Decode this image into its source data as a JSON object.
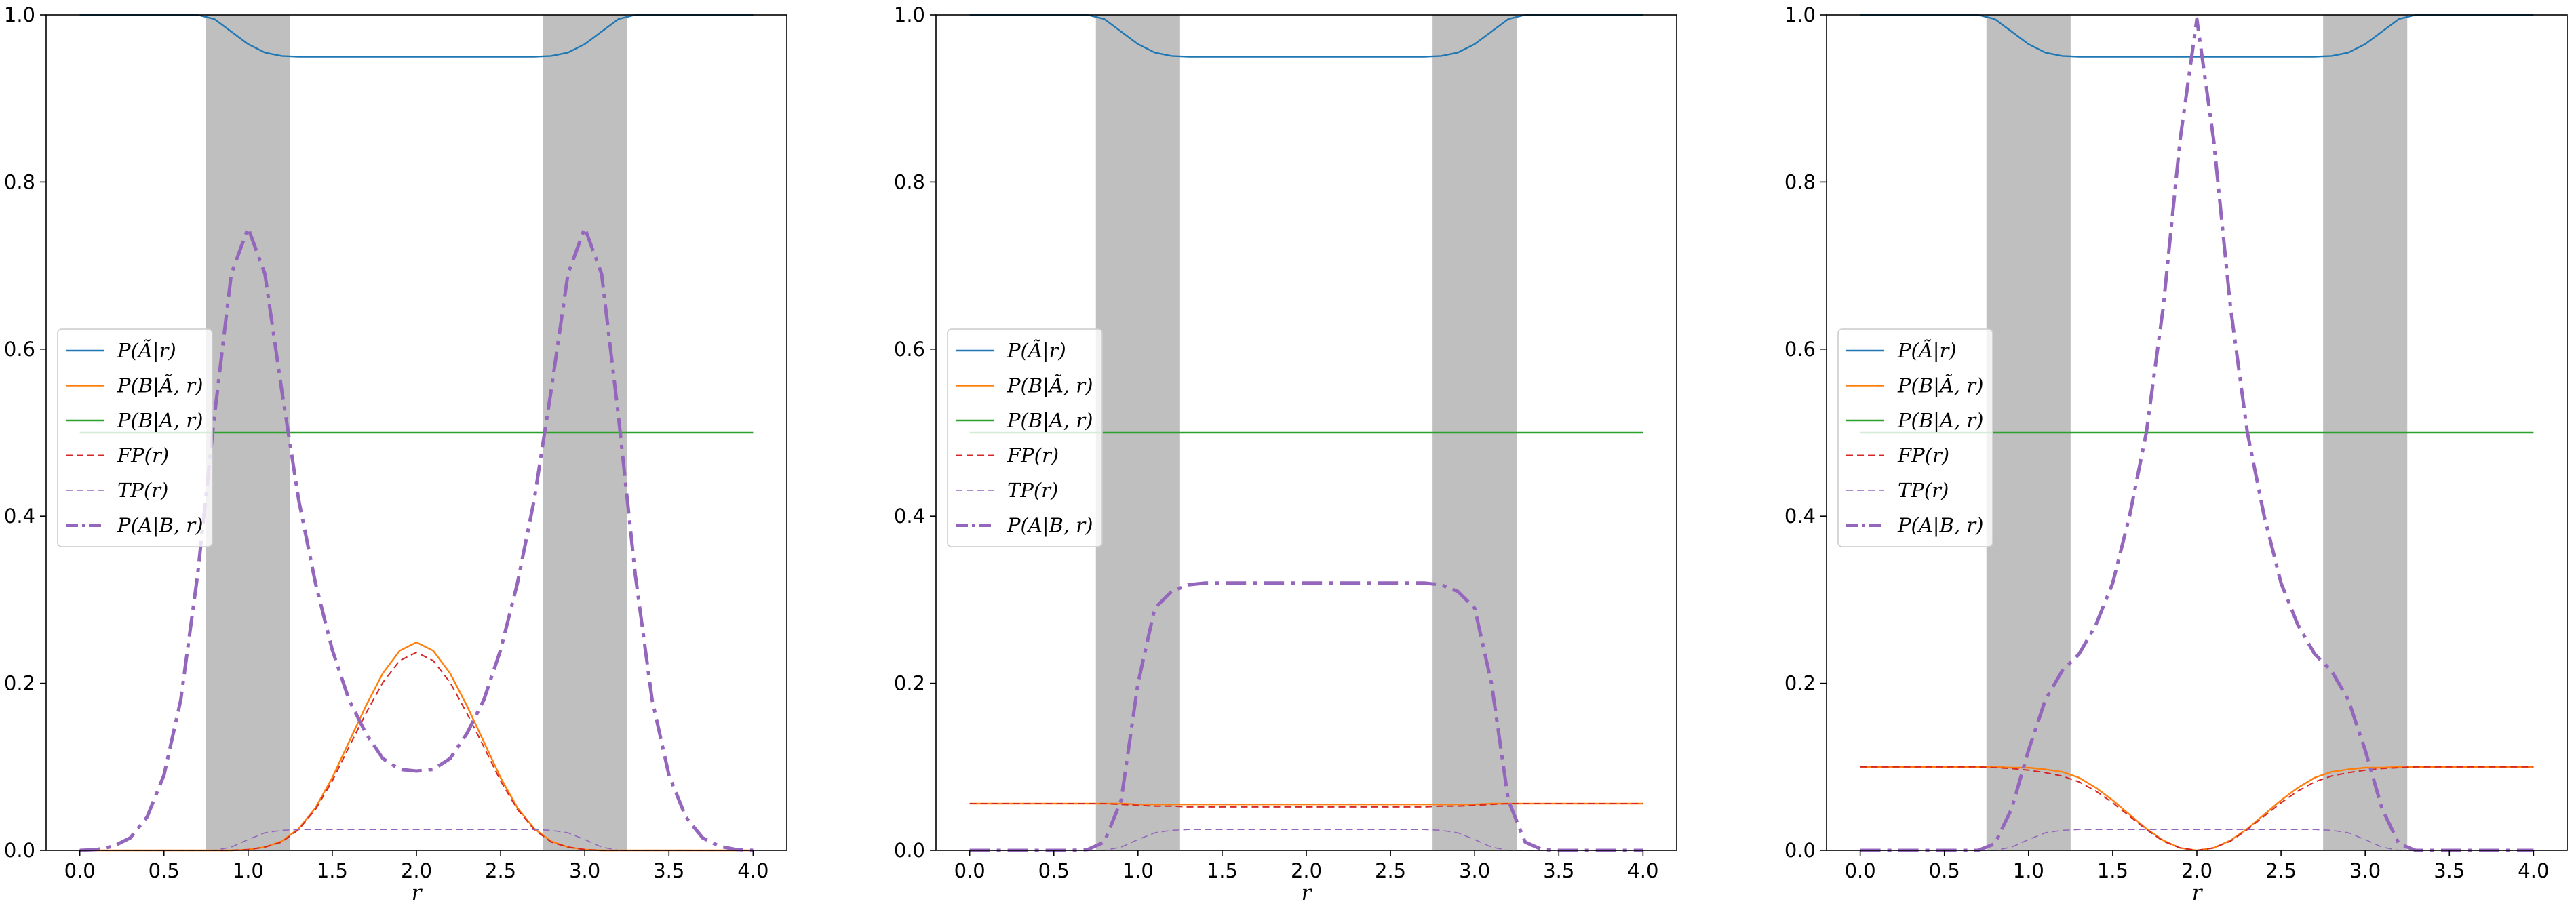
{
  "figure": {
    "colors": {
      "shade": "#bfbfbf",
      "blue": "#1f77b4",
      "orange": "#ff7f0e",
      "green": "#2ca02c",
      "red": "#d62728",
      "purple": "#9467bd"
    }
  },
  "chart_data": [
    {
      "type": "line",
      "xlabel": "r",
      "ylabel": "",
      "xlim": [
        -0.2,
        4.2
      ],
      "ylim": [
        0.0,
        1.0
      ],
      "xticks": [
        "0.0",
        "0.5",
        "1.0",
        "1.5",
        "2.0",
        "2.5",
        "3.0",
        "3.5",
        "4.0"
      ],
      "yticks": [
        "0.0",
        "0.2",
        "0.4",
        "0.6",
        "0.8",
        "1.0"
      ],
      "shaded_regions": [
        [
          0.75,
          1.25
        ],
        [
          2.75,
          3.25
        ]
      ],
      "legend_position": "center-left",
      "x": [
        0.0,
        0.1,
        0.2,
        0.3,
        0.4,
        0.5,
        0.6,
        0.7,
        0.8,
        0.9,
        1.0,
        1.1,
        1.2,
        1.3,
        1.4,
        1.5,
        1.6,
        1.7,
        1.8,
        1.9,
        2.0,
        2.1,
        2.2,
        2.3,
        2.4,
        2.5,
        2.6,
        2.7,
        2.8,
        2.9,
        3.0,
        3.1,
        3.2,
        3.3,
        3.4,
        3.5,
        3.6,
        3.7,
        3.8,
        3.9,
        4.0
      ],
      "series": [
        {
          "name": "P(Ã|r)",
          "color": "blue",
          "style": "solid",
          "values": [
            1.0,
            1.0,
            1.0,
            1.0,
            1.0,
            1.0,
            1.0,
            1.0,
            0.995,
            0.98,
            0.965,
            0.955,
            0.951,
            0.95,
            0.95,
            0.95,
            0.95,
            0.95,
            0.95,
            0.95,
            0.95,
            0.95,
            0.95,
            0.95,
            0.95,
            0.95,
            0.95,
            0.95,
            0.951,
            0.955,
            0.965,
            0.98,
            0.995,
            1.0,
            1.0,
            1.0,
            1.0,
            1.0,
            1.0,
            1.0,
            1.0
          ]
        },
        {
          "name": "P(B|Ã, r)",
          "color": "orange",
          "style": "solid",
          "values": [
            0.0,
            0.0,
            0.0,
            0.0,
            0.0,
            0.0,
            0.0,
            0.0,
            0.0,
            0.0,
            0.001,
            0.004,
            0.011,
            0.026,
            0.051,
            0.087,
            0.13,
            0.173,
            0.212,
            0.239,
            0.249,
            0.239,
            0.212,
            0.173,
            0.13,
            0.087,
            0.051,
            0.026,
            0.011,
            0.004,
            0.001,
            0.0,
            0.0,
            0.0,
            0.0,
            0.0,
            0.0,
            0.0,
            0.0,
            0.0,
            0.0
          ]
        },
        {
          "name": "P(B|A, r)",
          "color": "green",
          "style": "solid",
          "values": [
            0.5,
            0.5,
            0.5,
            0.5,
            0.5,
            0.5,
            0.5,
            0.5,
            0.5,
            0.5,
            0.5,
            0.5,
            0.5,
            0.5,
            0.5,
            0.5,
            0.5,
            0.5,
            0.5,
            0.5,
            0.5,
            0.5,
            0.5,
            0.5,
            0.5,
            0.5,
            0.5,
            0.5,
            0.5,
            0.5,
            0.5,
            0.5,
            0.5,
            0.5,
            0.5,
            0.5,
            0.5,
            0.5,
            0.5,
            0.5,
            0.5
          ]
        },
        {
          "name": "FP(r)",
          "color": "red",
          "style": "dashed",
          "values": [
            0.0,
            0.0,
            0.0,
            0.0,
            0.0,
            0.0,
            0.0,
            0.0,
            0.0,
            0.0,
            0.001,
            0.004,
            0.01,
            0.025,
            0.049,
            0.083,
            0.124,
            0.164,
            0.201,
            0.227,
            0.237,
            0.227,
            0.201,
            0.164,
            0.124,
            0.083,
            0.049,
            0.025,
            0.01,
            0.004,
            0.001,
            0.0,
            0.0,
            0.0,
            0.0,
            0.0,
            0.0,
            0.0,
            0.0,
            0.0,
            0.0
          ]
        },
        {
          "name": "TP(r)",
          "color": "purple",
          "style": "dashed-thin",
          "values": [
            0.0,
            0.0,
            0.0,
            0.0,
            0.0,
            0.0,
            0.0,
            0.0,
            0.0,
            0.004,
            0.013,
            0.021,
            0.024,
            0.025,
            0.025,
            0.025,
            0.025,
            0.025,
            0.025,
            0.025,
            0.025,
            0.025,
            0.025,
            0.025,
            0.025,
            0.025,
            0.025,
            0.025,
            0.024,
            0.021,
            0.013,
            0.004,
            0.0,
            0.0,
            0.0,
            0.0,
            0.0,
            0.0,
            0.0,
            0.0,
            0.0
          ]
        },
        {
          "name": "P(A|B, r)",
          "color": "purple",
          "style": "dashdot",
          "values": [
            0.0,
            0.001,
            0.005,
            0.015,
            0.04,
            0.09,
            0.18,
            0.33,
            0.52,
            0.69,
            0.745,
            0.69,
            0.55,
            0.42,
            0.32,
            0.24,
            0.18,
            0.14,
            0.11,
            0.097,
            0.095,
            0.097,
            0.11,
            0.14,
            0.18,
            0.24,
            0.32,
            0.42,
            0.55,
            0.69,
            0.745,
            0.69,
            0.52,
            0.33,
            0.18,
            0.09,
            0.04,
            0.015,
            0.005,
            0.001,
            0.0
          ]
        }
      ]
    },
    {
      "type": "line",
      "xlabel": "r",
      "ylabel": "",
      "xlim": [
        -0.2,
        4.2
      ],
      "ylim": [
        0.0,
        1.0
      ],
      "xticks": [
        "0.0",
        "0.5",
        "1.0",
        "1.5",
        "2.0",
        "2.5",
        "3.0",
        "3.5",
        "4.0"
      ],
      "yticks": [
        "0.0",
        "0.2",
        "0.4",
        "0.6",
        "0.8",
        "1.0"
      ],
      "shaded_regions": [
        [
          0.75,
          1.25
        ],
        [
          2.75,
          3.25
        ]
      ],
      "legend_position": "center-left",
      "x": [
        0.0,
        0.1,
        0.2,
        0.3,
        0.4,
        0.5,
        0.6,
        0.7,
        0.8,
        0.9,
        1.0,
        1.1,
        1.2,
        1.3,
        1.4,
        1.5,
        1.6,
        1.7,
        1.8,
        1.9,
        2.0,
        2.1,
        2.2,
        2.3,
        2.4,
        2.5,
        2.6,
        2.7,
        2.8,
        2.9,
        3.0,
        3.1,
        3.2,
        3.3,
        3.4,
        3.5,
        3.6,
        3.7,
        3.8,
        3.9,
        4.0
      ],
      "series": [
        {
          "name": "P(Ã|r)",
          "color": "blue",
          "style": "solid",
          "values": [
            1.0,
            1.0,
            1.0,
            1.0,
            1.0,
            1.0,
            1.0,
            1.0,
            0.995,
            0.98,
            0.965,
            0.955,
            0.951,
            0.95,
            0.95,
            0.95,
            0.95,
            0.95,
            0.95,
            0.95,
            0.95,
            0.95,
            0.95,
            0.95,
            0.95,
            0.95,
            0.95,
            0.95,
            0.951,
            0.955,
            0.965,
            0.98,
            0.995,
            1.0,
            1.0,
            1.0,
            1.0,
            1.0,
            1.0,
            1.0,
            1.0
          ]
        },
        {
          "name": "P(B|Ã, r)",
          "color": "orange",
          "style": "solid",
          "values": [
            0.056,
            0.056,
            0.056,
            0.056,
            0.056,
            0.056,
            0.056,
            0.056,
            0.056,
            0.056,
            0.055,
            0.055,
            0.055,
            0.055,
            0.055,
            0.055,
            0.055,
            0.055,
            0.055,
            0.055,
            0.055,
            0.055,
            0.055,
            0.055,
            0.055,
            0.055,
            0.055,
            0.055,
            0.055,
            0.055,
            0.055,
            0.056,
            0.056,
            0.056,
            0.056,
            0.056,
            0.056,
            0.056,
            0.056,
            0.056,
            0.056
          ]
        },
        {
          "name": "P(B|A, r)",
          "color": "green",
          "style": "solid",
          "values": [
            0.5,
            0.5,
            0.5,
            0.5,
            0.5,
            0.5,
            0.5,
            0.5,
            0.5,
            0.5,
            0.5,
            0.5,
            0.5,
            0.5,
            0.5,
            0.5,
            0.5,
            0.5,
            0.5,
            0.5,
            0.5,
            0.5,
            0.5,
            0.5,
            0.5,
            0.5,
            0.5,
            0.5,
            0.5,
            0.5,
            0.5,
            0.5,
            0.5,
            0.5,
            0.5,
            0.5,
            0.5,
            0.5,
            0.5,
            0.5,
            0.5
          ]
        },
        {
          "name": "FP(r)",
          "color": "red",
          "style": "dashed",
          "values": [
            0.056,
            0.056,
            0.056,
            0.056,
            0.056,
            0.056,
            0.056,
            0.056,
            0.056,
            0.055,
            0.054,
            0.053,
            0.053,
            0.052,
            0.052,
            0.052,
            0.052,
            0.052,
            0.052,
            0.052,
            0.052,
            0.052,
            0.052,
            0.052,
            0.052,
            0.052,
            0.052,
            0.052,
            0.053,
            0.053,
            0.054,
            0.055,
            0.056,
            0.056,
            0.056,
            0.056,
            0.056,
            0.056,
            0.056,
            0.056,
            0.056
          ]
        },
        {
          "name": "TP(r)",
          "color": "purple",
          "style": "dashed-thin",
          "values": [
            0.0,
            0.0,
            0.0,
            0.0,
            0.0,
            0.0,
            0.0,
            0.0,
            0.0,
            0.004,
            0.013,
            0.021,
            0.024,
            0.025,
            0.025,
            0.025,
            0.025,
            0.025,
            0.025,
            0.025,
            0.025,
            0.025,
            0.025,
            0.025,
            0.025,
            0.025,
            0.025,
            0.025,
            0.024,
            0.021,
            0.013,
            0.004,
            0.0,
            0.0,
            0.0,
            0.0,
            0.0,
            0.0,
            0.0,
            0.0,
            0.0
          ]
        },
        {
          "name": "P(A|B, r)",
          "color": "purple",
          "style": "dashdot",
          "values": [
            0.0,
            0.0,
            0.0,
            0.0,
            0.0,
            0.0,
            0.0,
            0.001,
            0.01,
            0.06,
            0.2,
            0.29,
            0.31,
            0.318,
            0.32,
            0.32,
            0.32,
            0.32,
            0.32,
            0.32,
            0.32,
            0.32,
            0.32,
            0.32,
            0.32,
            0.32,
            0.32,
            0.32,
            0.318,
            0.31,
            0.29,
            0.2,
            0.06,
            0.01,
            0.001,
            0.0,
            0.0,
            0.0,
            0.0,
            0.0,
            0.0
          ]
        }
      ]
    },
    {
      "type": "line",
      "xlabel": "r",
      "ylabel": "",
      "xlim": [
        -0.2,
        4.2
      ],
      "ylim": [
        0.0,
        1.0
      ],
      "xticks": [
        "0.0",
        "0.5",
        "1.0",
        "1.5",
        "2.0",
        "2.5",
        "3.0",
        "3.5",
        "4.0"
      ],
      "yticks": [
        "0.0",
        "0.2",
        "0.4",
        "0.6",
        "0.8",
        "1.0"
      ],
      "shaded_regions": [
        [
          0.75,
          1.25
        ],
        [
          2.75,
          3.25
        ]
      ],
      "legend_position": "center-left",
      "x": [
        0.0,
        0.1,
        0.2,
        0.3,
        0.4,
        0.5,
        0.6,
        0.7,
        0.8,
        0.9,
        1.0,
        1.1,
        1.2,
        1.3,
        1.4,
        1.5,
        1.6,
        1.7,
        1.8,
        1.9,
        2.0,
        2.1,
        2.2,
        2.3,
        2.4,
        2.5,
        2.6,
        2.7,
        2.8,
        2.9,
        3.0,
        3.1,
        3.2,
        3.3,
        3.4,
        3.5,
        3.6,
        3.7,
        3.8,
        3.9,
        4.0
      ],
      "series": [
        {
          "name": "P(Ã|r)",
          "color": "blue",
          "style": "solid",
          "values": [
            1.0,
            1.0,
            1.0,
            1.0,
            1.0,
            1.0,
            1.0,
            1.0,
            0.995,
            0.98,
            0.965,
            0.955,
            0.951,
            0.95,
            0.95,
            0.95,
            0.95,
            0.95,
            0.95,
            0.95,
            0.95,
            0.95,
            0.95,
            0.95,
            0.95,
            0.95,
            0.95,
            0.95,
            0.951,
            0.955,
            0.965,
            0.98,
            0.995,
            1.0,
            1.0,
            1.0,
            1.0,
            1.0,
            1.0,
            1.0,
            1.0
          ]
        },
        {
          "name": "P(B|Ã, r)",
          "color": "orange",
          "style": "solid",
          "values": [
            0.1,
            0.1,
            0.1,
            0.1,
            0.1,
            0.1,
            0.1,
            0.1,
            0.1,
            0.099,
            0.099,
            0.097,
            0.094,
            0.087,
            0.075,
            0.06,
            0.043,
            0.026,
            0.012,
            0.003,
            0.0,
            0.003,
            0.012,
            0.026,
            0.043,
            0.06,
            0.075,
            0.087,
            0.094,
            0.097,
            0.099,
            0.099,
            0.1,
            0.1,
            0.1,
            0.1,
            0.1,
            0.1,
            0.1,
            0.1,
            0.1
          ]
        },
        {
          "name": "P(B|A, r)",
          "color": "green",
          "style": "solid",
          "values": [
            0.5,
            0.5,
            0.5,
            0.5,
            0.5,
            0.5,
            0.5,
            0.5,
            0.5,
            0.5,
            0.5,
            0.5,
            0.5,
            0.5,
            0.5,
            0.5,
            0.5,
            0.5,
            0.5,
            0.5,
            0.5,
            0.5,
            0.5,
            0.5,
            0.5,
            0.5,
            0.5,
            0.5,
            0.5,
            0.5,
            0.5,
            0.5,
            0.5,
            0.5,
            0.5,
            0.5,
            0.5,
            0.5,
            0.5,
            0.5,
            0.5
          ]
        },
        {
          "name": "FP(r)",
          "color": "red",
          "style": "dashed",
          "values": [
            0.1,
            0.1,
            0.1,
            0.1,
            0.1,
            0.1,
            0.1,
            0.1,
            0.099,
            0.098,
            0.096,
            0.093,
            0.089,
            0.082,
            0.071,
            0.057,
            0.041,
            0.025,
            0.011,
            0.003,
            0.0,
            0.003,
            0.011,
            0.025,
            0.041,
            0.057,
            0.071,
            0.082,
            0.089,
            0.093,
            0.096,
            0.098,
            0.099,
            0.1,
            0.1,
            0.1,
            0.1,
            0.1,
            0.1,
            0.1,
            0.1
          ]
        },
        {
          "name": "TP(r)",
          "color": "purple",
          "style": "dashed-thin",
          "values": [
            0.0,
            0.0,
            0.0,
            0.0,
            0.0,
            0.0,
            0.0,
            0.0,
            0.0,
            0.004,
            0.013,
            0.021,
            0.024,
            0.025,
            0.025,
            0.025,
            0.025,
            0.025,
            0.025,
            0.025,
            0.025,
            0.025,
            0.025,
            0.025,
            0.025,
            0.025,
            0.025,
            0.025,
            0.024,
            0.021,
            0.013,
            0.004,
            0.0,
            0.0,
            0.0,
            0.0,
            0.0,
            0.0,
            0.0,
            0.0,
            0.0
          ]
        },
        {
          "name": "P(A|B, r)",
          "color": "purple",
          "style": "dashdot",
          "values": [
            0.0,
            0.0,
            0.0,
            0.0,
            0.0,
            0.0,
            0.0,
            0.0,
            0.008,
            0.05,
            0.12,
            0.18,
            0.215,
            0.235,
            0.27,
            0.32,
            0.4,
            0.5,
            0.65,
            0.85,
            0.995,
            0.85,
            0.65,
            0.5,
            0.4,
            0.32,
            0.27,
            0.235,
            0.215,
            0.18,
            0.12,
            0.05,
            0.008,
            0.0,
            0.0,
            0.0,
            0.0,
            0.0,
            0.0,
            0.0,
            0.0
          ]
        }
      ]
    }
  ]
}
